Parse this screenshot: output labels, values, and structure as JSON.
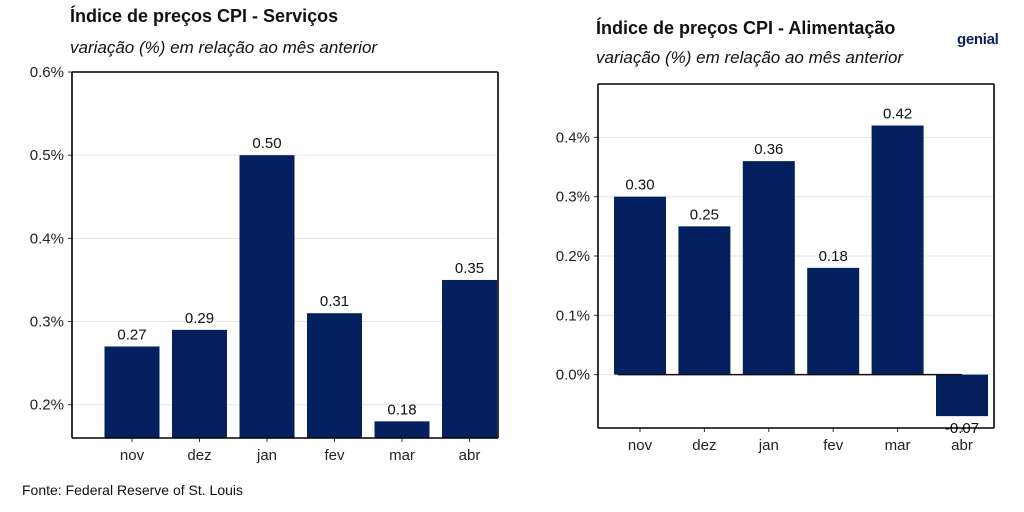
{
  "colors": {
    "bar": "#05205f",
    "grid": "#e6e6e6",
    "axis": "#000000"
  },
  "logo": {
    "text": "genial"
  },
  "source": "Fonte: Federal Reserve of St. Louis",
  "charts": [
    {
      "title": "Índice de preços CPI - Serviços",
      "subtitle": "variação (%) em relação ao mês anterior"
    },
    {
      "title": "Índice de preços CPI - Alimentação",
      "subtitle": "variação (%) em relação ao mês anterior"
    }
  ],
  "chart_data": [
    {
      "type": "bar",
      "title": "Índice de preços CPI - Serviços",
      "subtitle": "variação (%) em relação ao mês anterior",
      "categories": [
        "nov",
        "dez",
        "jan",
        "fev",
        "mar",
        "abr"
      ],
      "values": [
        0.27,
        0.29,
        0.5,
        0.31,
        0.18,
        0.35
      ],
      "value_labels": [
        "0.27",
        "0.29",
        "0.50",
        "0.31",
        "0.18",
        "0.35"
      ],
      "ylim": [
        0.16,
        0.6
      ],
      "yticks": [
        0.2,
        0.3,
        0.4,
        0.5,
        0.6
      ],
      "ytick_labels": [
        "0.2%",
        "0.3%",
        "0.4%",
        "0.5%",
        "0.6%"
      ],
      "grid": true,
      "legend": "none"
    },
    {
      "type": "bar",
      "title": "Índice de preços CPI - Alimentação",
      "subtitle": "variação (%) em relação ao mês anterior",
      "categories": [
        "nov",
        "dez",
        "jan",
        "fev",
        "mar",
        "abr"
      ],
      "values": [
        0.3,
        0.25,
        0.36,
        0.18,
        0.42,
        -0.07
      ],
      "value_labels": [
        "0.30",
        "0.25",
        "0.36",
        "0.18",
        "0.42",
        "-0.07"
      ],
      "ylim": [
        -0.09,
        0.49
      ],
      "yticks": [
        0.0,
        0.1,
        0.2,
        0.3,
        0.4
      ],
      "ytick_labels": [
        "0.0%",
        "0.1%",
        "0.2%",
        "0.3%",
        "0.4%"
      ],
      "grid": true,
      "legend": "none"
    }
  ]
}
